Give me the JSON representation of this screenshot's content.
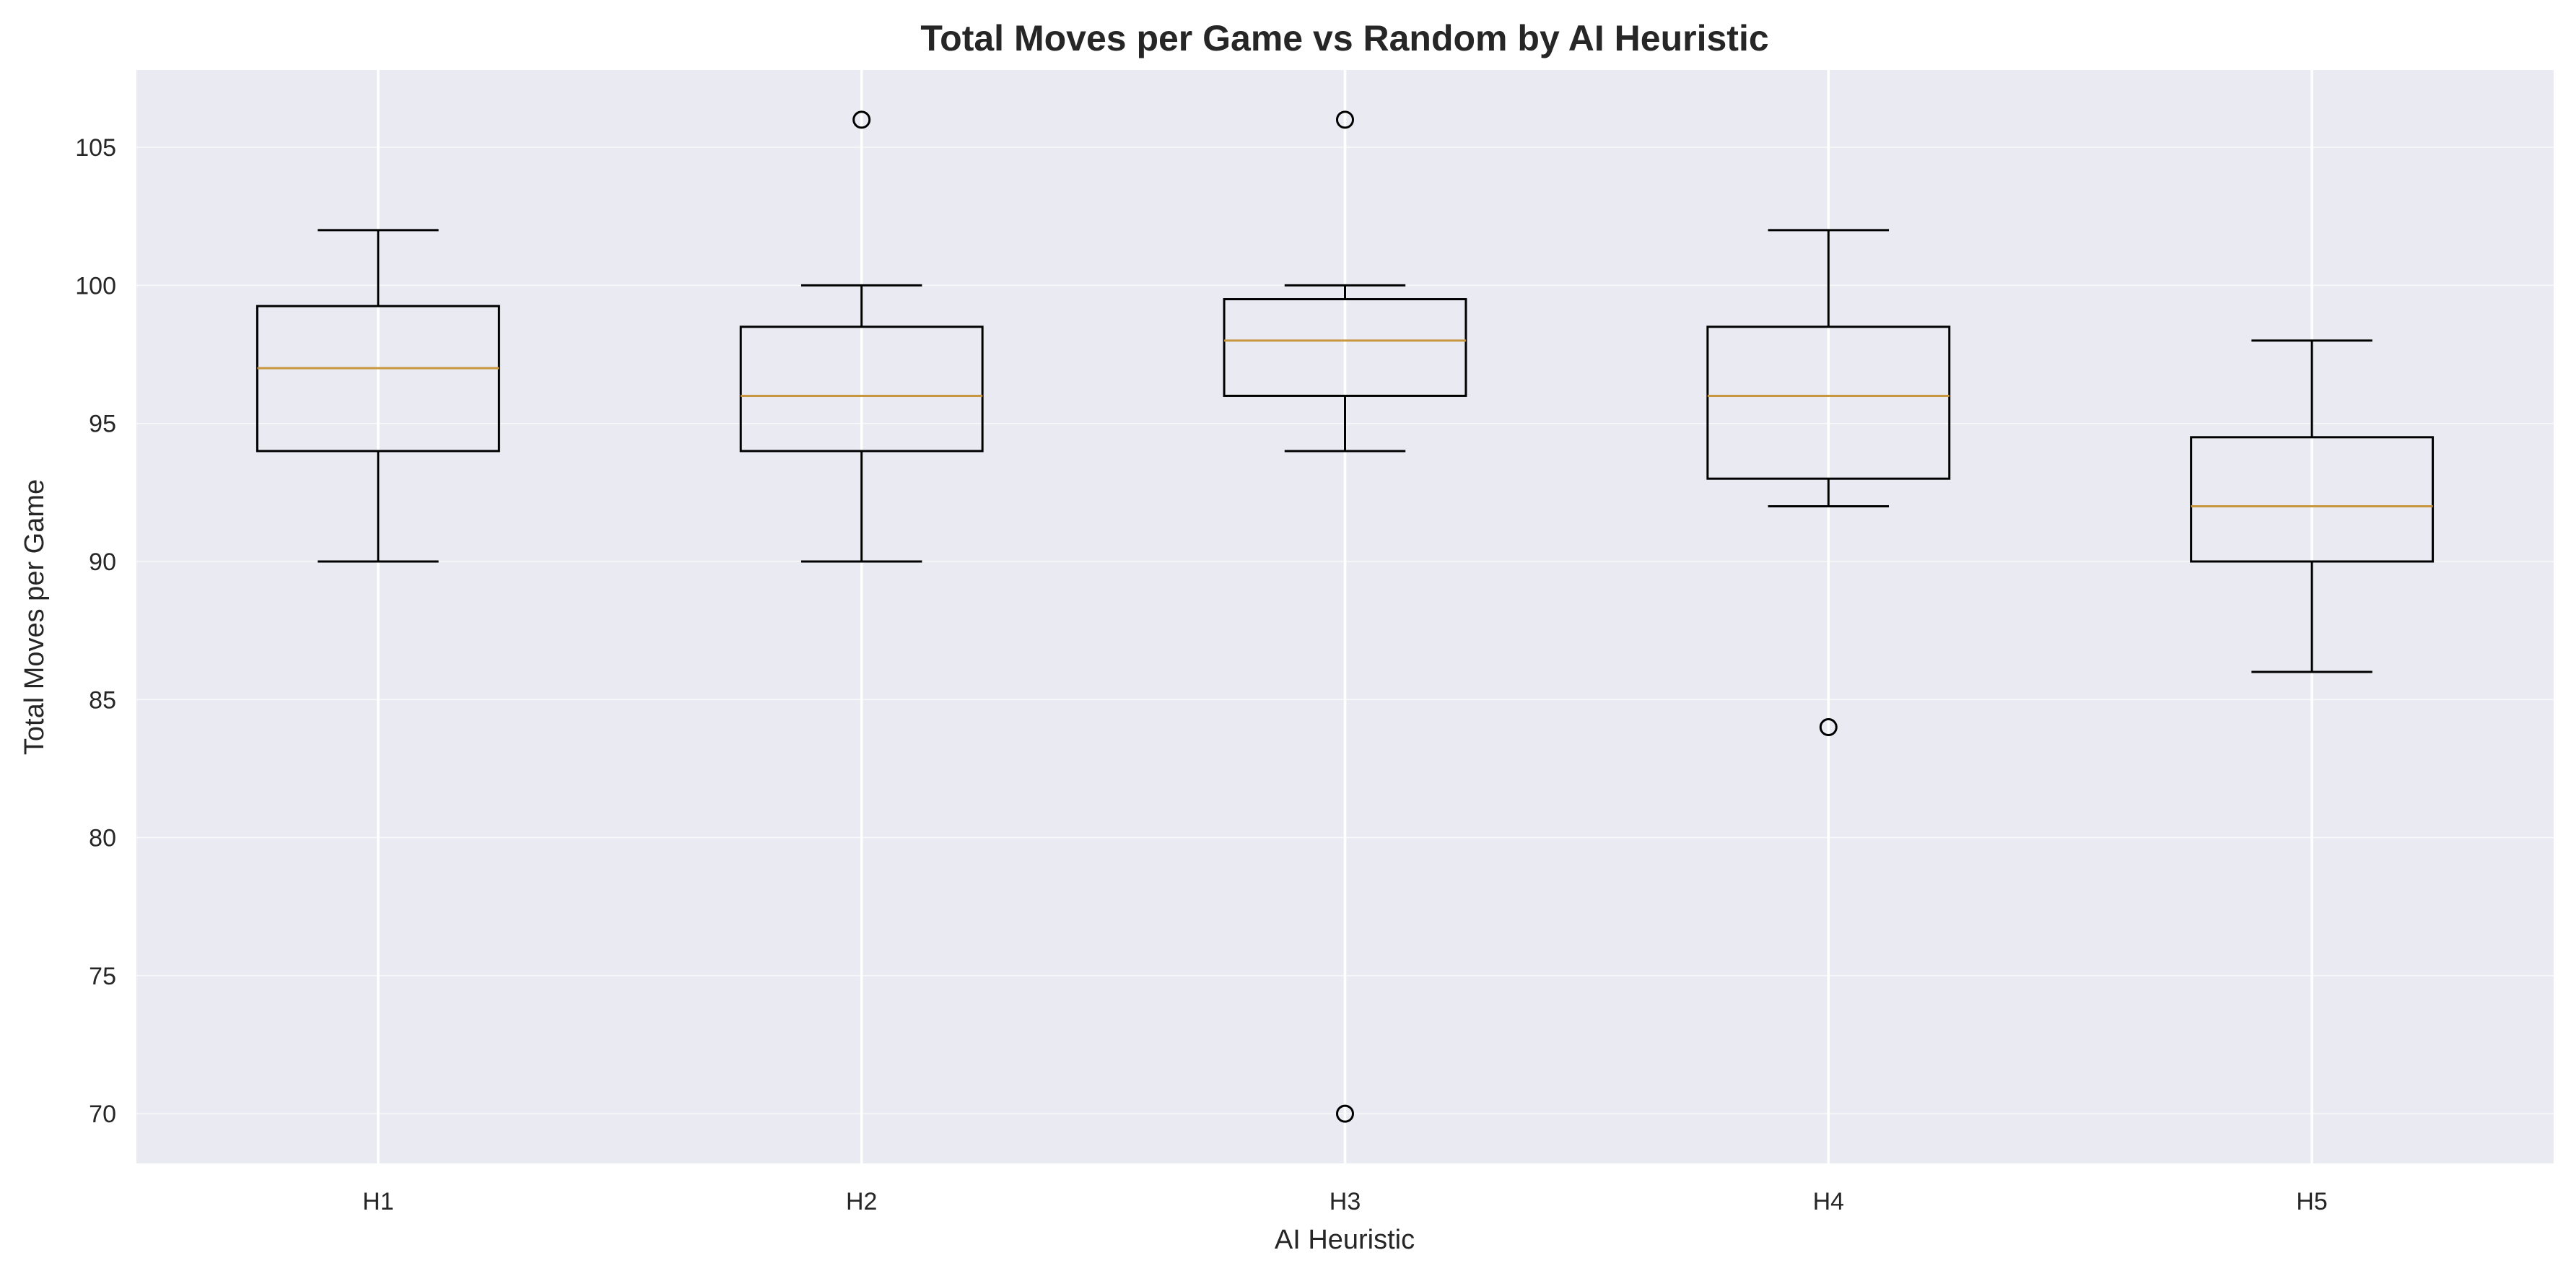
{
  "chart_data": {
    "type": "box",
    "title": "Total Moves per Game vs Random by AI Heuristic",
    "xlabel": "AI Heuristic",
    "ylabel": "Total Moves per Game",
    "ylim": [
      68.2,
      107.8
    ],
    "yticks": [
      70,
      75,
      80,
      85,
      90,
      95,
      100,
      105
    ],
    "ytick_labels": [
      "70",
      "75",
      "80",
      "85",
      "90",
      "95",
      "100",
      "105"
    ],
    "categories": [
      "H1",
      "H2",
      "H3",
      "H4",
      "H5"
    ],
    "grid": true,
    "boxes": [
      {
        "category": "H1",
        "whisker_low": 90,
        "q1": 94,
        "median": 97,
        "q3": 99.25,
        "whisker_high": 102,
        "outliers": []
      },
      {
        "category": "H2",
        "whisker_low": 90,
        "q1": 94,
        "median": 96,
        "q3": 98.5,
        "whisker_high": 100,
        "outliers": [
          106
        ]
      },
      {
        "category": "H3",
        "whisker_low": 94,
        "q1": 96,
        "median": 98,
        "q3": 99.5,
        "whisker_high": 100,
        "outliers": [
          106,
          70
        ]
      },
      {
        "category": "H4",
        "whisker_low": 92,
        "q1": 93,
        "median": 96,
        "q3": 98.5,
        "whisker_high": 102,
        "outliers": [
          84
        ]
      },
      {
        "category": "H5",
        "whisker_low": 86,
        "q1": 90,
        "median": 92,
        "q3": 94.5,
        "whisker_high": 98,
        "outliers": []
      }
    ],
    "colors": {
      "plot_background": "#eaeaf2",
      "grid": "#ffffff",
      "box_edge": "#000000",
      "median": "#c8963e",
      "text": "#262626"
    }
  }
}
